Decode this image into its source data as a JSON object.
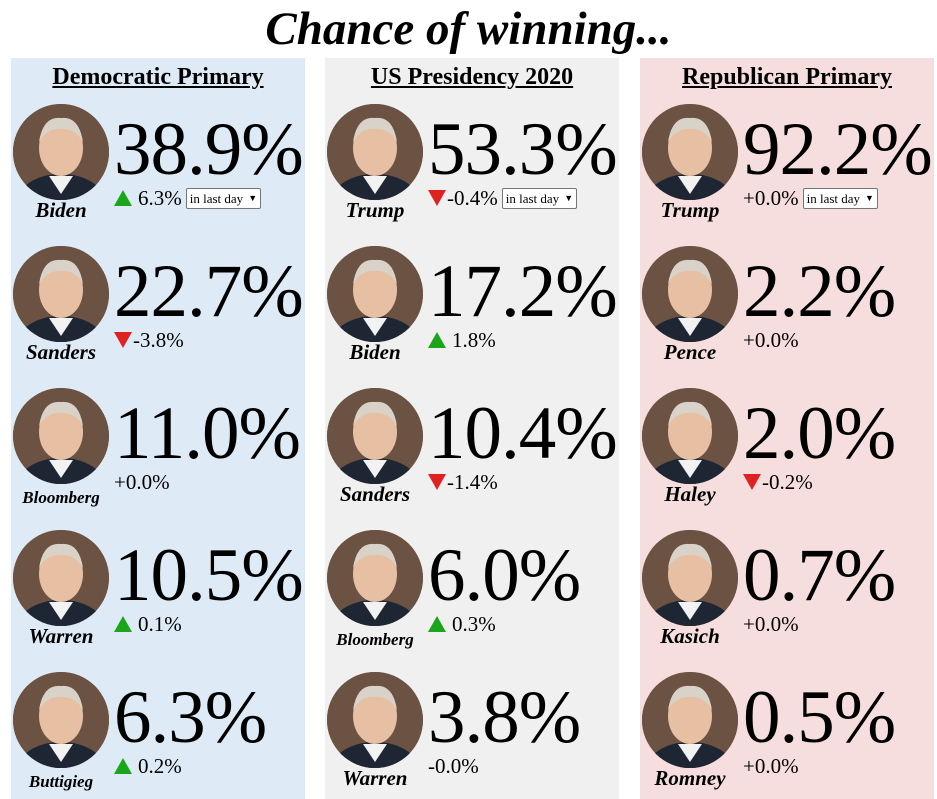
{
  "title": "Chance of winning...",
  "columns": [
    {
      "header": "Democratic Primary",
      "period": "in last day",
      "candidates": [
        {
          "name": "Biden",
          "pct": "38.9%",
          "change": "6.3%",
          "dir": "up"
        },
        {
          "name": "Sanders",
          "pct": "22.7%",
          "change": "-3.8%",
          "dir": "down"
        },
        {
          "name": "Bloomberg",
          "pct": "11.0%",
          "change": "+0.0%",
          "dir": "none"
        },
        {
          "name": "Warren",
          "pct": "10.5%",
          "change": "0.1%",
          "dir": "up"
        },
        {
          "name": "Buttigieg",
          "pct": "6.3%",
          "change": "0.2%",
          "dir": "up"
        }
      ]
    },
    {
      "header": "US Presidency 2020",
      "period": "in last day",
      "candidates": [
        {
          "name": "Trump",
          "pct": "53.3%",
          "change": "-0.4%",
          "dir": "down"
        },
        {
          "name": "Biden",
          "pct": "17.2%",
          "change": "1.8%",
          "dir": "up"
        },
        {
          "name": "Sanders",
          "pct": "10.4%",
          "change": "-1.4%",
          "dir": "down"
        },
        {
          "name": "Bloomberg",
          "pct": "6.0%",
          "change": "0.3%",
          "dir": "up"
        },
        {
          "name": "Warren",
          "pct": "3.8%",
          "change": "-0.0%",
          "dir": "none"
        }
      ]
    },
    {
      "header": "Republican Primary",
      "period": "in last day",
      "candidates": [
        {
          "name": "Trump",
          "pct": "92.2%",
          "change": "+0.0%",
          "dir": "none"
        },
        {
          "name": "Pence",
          "pct": "2.2%",
          "change": "+0.0%",
          "dir": "none"
        },
        {
          "name": "Haley",
          "pct": "2.0%",
          "change": "-0.2%",
          "dir": "down"
        },
        {
          "name": "Kasich",
          "pct": "0.7%",
          "change": "+0.0%",
          "dir": "none"
        },
        {
          "name": "Romney",
          "pct": "0.5%",
          "change": "+0.0%",
          "dir": "none"
        }
      ]
    }
  ],
  "colors": {
    "democratic_bg": "#deebf7",
    "presidency_bg": "#f0f0f0",
    "republican_bg": "#f7dede",
    "up_arrow": "#1aa51a",
    "down_arrow": "#e02121"
  }
}
